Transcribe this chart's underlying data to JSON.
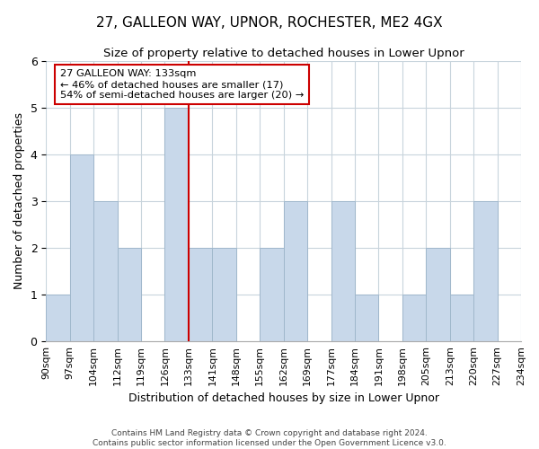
{
  "title": "27, GALLEON WAY, UPNOR, ROCHESTER, ME2 4GX",
  "subtitle": "Size of property relative to detached houses in Lower Upnor",
  "xlabel": "Distribution of detached houses by size in Lower Upnor",
  "ylabel": "Number of detached properties",
  "footer_line1": "Contains HM Land Registry data © Crown copyright and database right 2024.",
  "footer_line2": "Contains public sector information licensed under the Open Government Licence v3.0.",
  "bin_labels": [
    "90sqm",
    "97sqm",
    "104sqm",
    "112sqm",
    "119sqm",
    "126sqm",
    "133sqm",
    "141sqm",
    "148sqm",
    "155sqm",
    "162sqm",
    "169sqm",
    "177sqm",
    "184sqm",
    "191sqm",
    "198sqm",
    "205sqm",
    "213sqm",
    "220sqm",
    "227sqm",
    "234sqm"
  ],
  "bar_values": [
    1,
    4,
    3,
    2,
    0,
    5,
    2,
    2,
    0,
    2,
    3,
    0,
    3,
    1,
    0,
    1,
    2,
    1,
    3,
    0
  ],
  "bar_color": "#c8d8ea",
  "bar_edge_color": "#a0b8cc",
  "highlight_line_label_index": 6,
  "highlight_line_color": "#cc0000",
  "ylim": [
    0,
    6
  ],
  "yticks": [
    0,
    1,
    2,
    3,
    4,
    5,
    6
  ],
  "annotation_text_line1": "27 GALLEON WAY: 133sqm",
  "annotation_text_line2": "← 46% of detached houses are smaller (17)",
  "annotation_text_line3": "54% of semi-detached houses are larger (20) →",
  "annotation_box_color": "#ffffff",
  "annotation_box_edge_color": "#cc0000",
  "background_color": "#ffffff",
  "grid_color": "#c8d4dc"
}
